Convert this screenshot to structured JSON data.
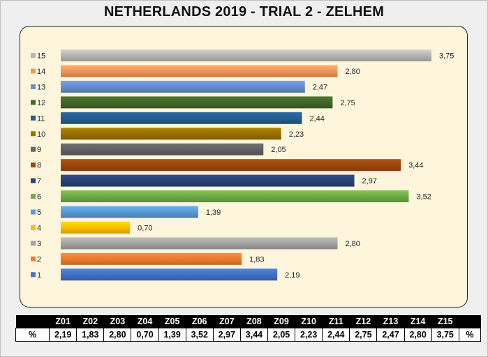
{
  "title": "NETHERLANDS 2019 - TRIAL 2 - ZELHEM",
  "chart_data": {
    "type": "bar",
    "orientation": "horizontal",
    "categories": [
      "1",
      "2",
      "3",
      "4",
      "5",
      "6",
      "7",
      "8",
      "9",
      "10",
      "11",
      "12",
      "13",
      "14",
      "15"
    ],
    "values": [
      2.19,
      1.83,
      2.8,
      0.7,
      1.39,
      3.52,
      2.97,
      3.44,
      2.05,
      2.23,
      2.44,
      2.75,
      2.47,
      2.8,
      3.75
    ],
    "value_labels": [
      "2,19",
      "1,83",
      "2,80",
      "0,70",
      "1,39",
      "3,52",
      "2,97",
      "3,44",
      "2,05",
      "2,23",
      "2,44",
      "2,75",
      "2,47",
      "2,80",
      "3,75"
    ],
    "colors": [
      "#4472c4",
      "#ed7d31",
      "#a5a5a5",
      "#ffc000",
      "#5b9bd5",
      "#70ad47",
      "#264478",
      "#9e480e",
      "#636363",
      "#997300",
      "#255e91",
      "#43682b",
      "#698ed0",
      "#f1975a",
      "#b7b7b7"
    ],
    "xlim": [
      0,
      4
    ],
    "grid": false,
    "legend": "left"
  },
  "table": {
    "headers": [
      "Z01",
      "Z02",
      "Z03",
      "Z04",
      "Z05",
      "Z06",
      "Z07",
      "Z08",
      "Z09",
      "Z10",
      "Z11",
      "Z12",
      "Z13",
      "Z14",
      "Z15"
    ],
    "row_label": "%",
    "row_unit": "%",
    "values": [
      "2,19",
      "1,83",
      "2,80",
      "0,70",
      "1,39",
      "3,52",
      "2,97",
      "3,44",
      "2,05",
      "2,23",
      "2,44",
      "2,75",
      "2,47",
      "2,80",
      "3,75"
    ]
  }
}
